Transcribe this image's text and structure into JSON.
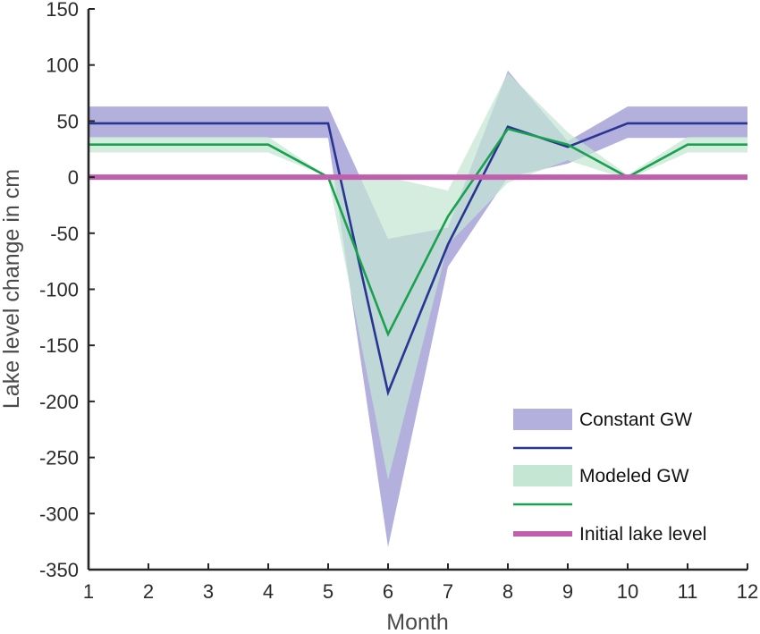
{
  "chart_data": {
    "type": "line",
    "title": "",
    "xlabel": "Month",
    "ylabel": "Lake level change in cm",
    "xlim": [
      1,
      12
    ],
    "ylim": [
      -350,
      150
    ],
    "xticks": [
      1,
      2,
      3,
      4,
      5,
      6,
      7,
      8,
      9,
      10,
      11,
      12
    ],
    "yticks": [
      150,
      100,
      50,
      0,
      -50,
      -100,
      -150,
      -200,
      -250,
      -300,
      -350
    ],
    "grid": false,
    "legend_position": "bottom-right",
    "x": [
      1,
      2,
      3,
      4,
      5,
      6,
      7,
      8,
      9,
      10,
      11,
      12
    ],
    "bands": [
      {
        "name": "Constant GW",
        "color": "#b4b0de",
        "lower": [
          35,
          35,
          35,
          35,
          35,
          -330,
          -80,
          0,
          12,
          35,
          35,
          35
        ],
        "upper": [
          63,
          63,
          63,
          63,
          63,
          -55,
          -45,
          95,
          32,
          63,
          63,
          63
        ]
      },
      {
        "name": "Modeled GW",
        "color": "#c4e6d2",
        "lower": [
          22,
          22,
          22,
          22,
          0,
          -270,
          -60,
          -5,
          15,
          -2,
          22,
          22
        ],
        "upper": [
          36,
          36,
          36,
          36,
          0,
          0,
          -12,
          93,
          40,
          2,
          36,
          36
        ]
      }
    ],
    "series": [
      {
        "color": "#283592",
        "values": [
          48,
          48,
          48,
          48,
          48,
          -192,
          -60,
          45,
          27,
          48,
          48,
          48
        ]
      },
      {
        "color": "#1aa14f",
        "values": [
          29,
          29,
          29,
          29,
          0,
          -140,
          -35,
          43,
          29,
          0,
          29,
          29
        ]
      },
      {
        "name": "Initial lake level",
        "color": "#c060ad",
        "values": [
          0,
          0,
          0,
          0,
          0,
          0,
          0,
          0,
          0,
          0,
          0,
          0
        ]
      }
    ],
    "legend": [
      {
        "label": "Constant GW",
        "kind": "band",
        "color": "#b4b0de"
      },
      {
        "label": "",
        "kind": "line",
        "color": "#283592"
      },
      {
        "label": "Modeled GW",
        "kind": "band",
        "color": "#c4e6d2"
      },
      {
        "label": "",
        "kind": "line",
        "color": "#1aa14f"
      },
      {
        "label": "Initial lake level",
        "kind": "thickline",
        "color": "#c060ad"
      }
    ]
  }
}
